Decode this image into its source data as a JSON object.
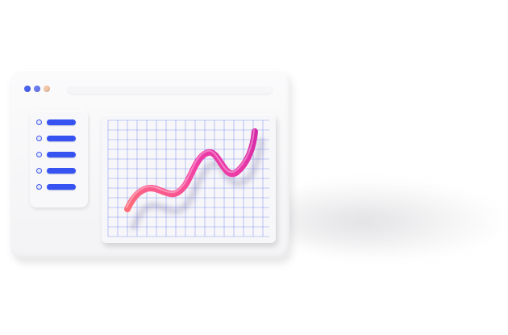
{
  "window": {
    "traffic_lights": [
      {
        "icon": "window-dot-icon",
        "color": "#4a63f0"
      },
      {
        "icon": "window-dot-icon",
        "color": "#6a7cf2"
      },
      {
        "icon": "window-dot-icon",
        "color": "#f4c7a8"
      }
    ],
    "address_bar": {
      "value": ""
    }
  },
  "sidebar": {
    "item_count": 5,
    "accent_color": "#3653f2"
  },
  "chart": {
    "type": "line",
    "grid": true,
    "grid_color": "#6b7cf0",
    "line_gradient": [
      "#ff6f7a",
      "#f23fa6",
      "#d42aa8"
    ]
  }
}
